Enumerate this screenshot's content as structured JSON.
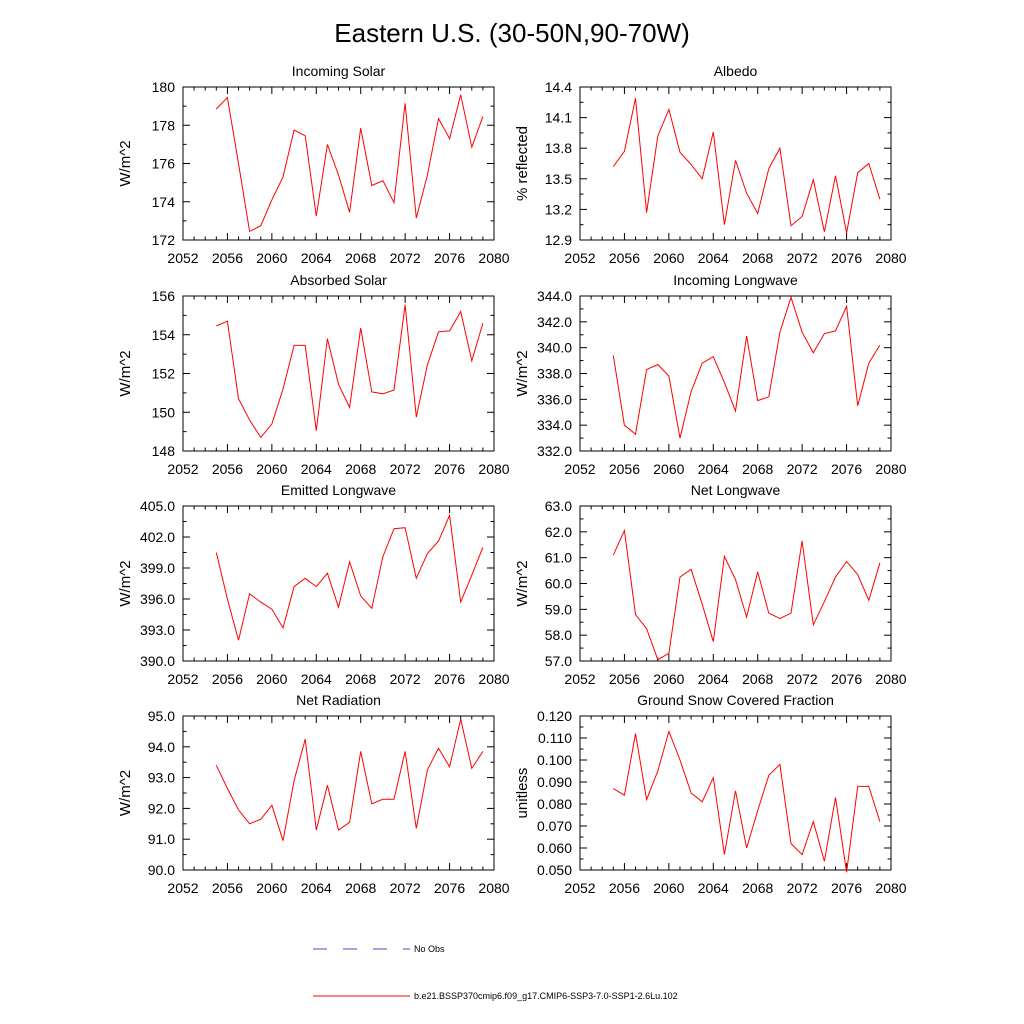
{
  "figure": {
    "title": "Eastern U.S. (30-50N,90-70W)",
    "line_color": "#ff0000",
    "obs_color": "#3b4fc7"
  },
  "legend": [
    {
      "label": "No Obs",
      "style": "dashed",
      "color": "#3b4fc7"
    },
    {
      "label": "b.e21.BSSP370cmip6.f09_g17.CMIP6-SSP3-7.0-SSP1-2.6Lu.102",
      "style": "solid",
      "color": "#ff0000"
    }
  ],
  "chart_data": [
    {
      "type": "line",
      "title": "Incoming Solar",
      "ylabel": "W/m^2",
      "xlim": [
        2052,
        2080
      ],
      "xticks": [
        "2052",
        "2056",
        "2060",
        "2064",
        "2068",
        "2072",
        "2076",
        "2080"
      ],
      "ylim": [
        172,
        180
      ],
      "yticks": [
        "172",
        "174",
        "176",
        "178",
        "180"
      ],
      "x": [
        2055,
        2056,
        2057,
        2058,
        2059,
        2060,
        2061,
        2062,
        2063,
        2064,
        2065,
        2066,
        2067,
        2068,
        2069,
        2070,
        2071,
        2072,
        2073,
        2074,
        2075,
        2076,
        2077,
        2078,
        2079
      ],
      "series": [
        {
          "values": [
            178.85,
            179.45,
            176.0,
            172.45,
            172.75,
            174.1,
            175.3,
            177.75,
            177.45,
            173.25,
            177.0,
            175.4,
            173.45,
            177.85,
            174.85,
            175.1,
            173.95,
            179.15,
            173.15,
            175.4,
            178.35,
            177.3,
            179.6,
            176.85,
            178.45
          ]
        }
      ]
    },
    {
      "type": "line",
      "title": "Albedo",
      "ylabel": "% reflected",
      "xlim": [
        2052,
        2080
      ],
      "xticks": [
        "2052",
        "2056",
        "2060",
        "2064",
        "2068",
        "2072",
        "2076",
        "2080"
      ],
      "ylim": [
        12.9,
        14.4
      ],
      "yticks": [
        "12.9",
        "13.2",
        "13.5",
        "13.8",
        "14.1",
        "14.4"
      ],
      "x": [
        2055,
        2056,
        2057,
        2058,
        2059,
        2060,
        2061,
        2062,
        2063,
        2064,
        2065,
        2066,
        2067,
        2068,
        2069,
        2070,
        2071,
        2072,
        2073,
        2074,
        2075,
        2076,
        2077,
        2078,
        2079
      ],
      "series": [
        {
          "values": [
            13.62,
            13.77,
            14.29,
            13.17,
            13.92,
            14.18,
            13.76,
            13.64,
            13.5,
            13.96,
            13.05,
            13.68,
            13.36,
            13.16,
            13.6,
            13.8,
            13.04,
            13.13,
            13.49,
            12.98,
            13.53,
            12.97,
            13.56,
            13.65,
            13.3
          ]
        }
      ]
    },
    {
      "type": "line",
      "title": "Absorbed Solar",
      "ylabel": "W/m^2",
      "xlim": [
        2052,
        2080
      ],
      "xticks": [
        "2052",
        "2056",
        "2060",
        "2064",
        "2068",
        "2072",
        "2076",
        "2080"
      ],
      "ylim": [
        148,
        156
      ],
      "yticks": [
        "148",
        "150",
        "152",
        "154",
        "156"
      ],
      "x": [
        2055,
        2056,
        2057,
        2058,
        2059,
        2060,
        2061,
        2062,
        2063,
        2064,
        2065,
        2066,
        2067,
        2068,
        2069,
        2070,
        2071,
        2072,
        2073,
        2074,
        2075,
        2076,
        2077,
        2078,
        2079
      ],
      "series": [
        {
          "values": [
            154.45,
            154.7,
            150.7,
            149.6,
            148.7,
            149.4,
            151.2,
            153.45,
            153.45,
            149.05,
            153.8,
            151.45,
            150.25,
            154.35,
            151.05,
            150.95,
            151.15,
            155.55,
            149.75,
            152.45,
            154.15,
            154.2,
            155.2,
            152.65,
            154.6
          ]
        }
      ]
    },
    {
      "type": "line",
      "title": "Incoming Longwave",
      "ylabel": "W/m^2",
      "xlim": [
        2052,
        2080
      ],
      "xticks": [
        "2052",
        "2056",
        "2060",
        "2064",
        "2068",
        "2072",
        "2076",
        "2080"
      ],
      "ylim": [
        332.0,
        344.0
      ],
      "yticks": [
        "332.0",
        "334.0",
        "336.0",
        "338.0",
        "340.0",
        "342.0",
        "344.0"
      ],
      "x": [
        2055,
        2056,
        2057,
        2058,
        2059,
        2060,
        2061,
        2062,
        2063,
        2064,
        2065,
        2066,
        2067,
        2068,
        2069,
        2070,
        2071,
        2072,
        2073,
        2074,
        2075,
        2076,
        2077,
        2078,
        2079
      ],
      "series": [
        {
          "values": [
            339.4,
            334.0,
            333.3,
            338.3,
            338.7,
            337.8,
            333.0,
            336.6,
            338.8,
            339.3,
            337.3,
            335.1,
            340.9,
            335.9,
            336.2,
            341.2,
            343.9,
            341.2,
            339.6,
            341.1,
            341.3,
            343.2,
            335.5,
            338.8,
            340.2
          ]
        }
      ]
    },
    {
      "type": "line",
      "title": "Emitted Longwave",
      "ylabel": "W/m^2",
      "xlim": [
        2052,
        2080
      ],
      "xticks": [
        "2052",
        "2056",
        "2060",
        "2064",
        "2068",
        "2072",
        "2076",
        "2080"
      ],
      "ylim": [
        390.0,
        405.0
      ],
      "yticks": [
        "390.0",
        "393.0",
        "396.0",
        "399.0",
        "402.0",
        "405.0"
      ],
      "x": [
        2055,
        2056,
        2057,
        2058,
        2059,
        2060,
        2061,
        2062,
        2063,
        2064,
        2065,
        2066,
        2067,
        2068,
        2069,
        2070,
        2071,
        2072,
        2073,
        2074,
        2075,
        2076,
        2077,
        2078,
        2079
      ],
      "series": [
        {
          "values": [
            400.5,
            396.0,
            392.0,
            396.5,
            395.7,
            395.0,
            393.2,
            397.2,
            398.0,
            397.2,
            398.5,
            395.2,
            399.6,
            396.3,
            395.1,
            400.1,
            402.8,
            402.9,
            398.0,
            400.4,
            401.6,
            404.1,
            395.7,
            398.3,
            401.0
          ]
        }
      ]
    },
    {
      "type": "line",
      "title": "Net Longwave",
      "ylabel": "W/m^2",
      "xlim": [
        2052,
        2080
      ],
      "xticks": [
        "2052",
        "2056",
        "2060",
        "2064",
        "2068",
        "2072",
        "2076",
        "2080"
      ],
      "ylim": [
        57.0,
        63.0
      ],
      "yticks": [
        "57.0",
        "58.0",
        "59.0",
        "60.0",
        "61.0",
        "62.0",
        "63.0"
      ],
      "x": [
        2055,
        2056,
        2057,
        2058,
        2059,
        2060,
        2061,
        2062,
        2063,
        2064,
        2065,
        2066,
        2067,
        2068,
        2069,
        2070,
        2071,
        2072,
        2073,
        2074,
        2075,
        2076,
        2077,
        2078,
        2079
      ],
      "series": [
        {
          "values": [
            61.1,
            62.05,
            58.8,
            58.25,
            57.05,
            57.3,
            60.25,
            60.55,
            59.2,
            57.75,
            61.05,
            60.15,
            58.7,
            60.45,
            58.85,
            58.65,
            58.85,
            61.65,
            58.4,
            59.3,
            60.25,
            60.85,
            60.35,
            59.35,
            60.8
          ]
        }
      ]
    },
    {
      "type": "line",
      "title": "Net Radiation",
      "ylabel": "W/m^2",
      "xlim": [
        2052,
        2080
      ],
      "xticks": [
        "2052",
        "2056",
        "2060",
        "2064",
        "2068",
        "2072",
        "2076",
        "2080"
      ],
      "ylim": [
        90.0,
        95.0
      ],
      "yticks": [
        "90.0",
        "91.0",
        "92.0",
        "93.0",
        "94.0",
        "95.0"
      ],
      "x": [
        2055,
        2056,
        2057,
        2058,
        2059,
        2060,
        2061,
        2062,
        2063,
        2064,
        2065,
        2066,
        2067,
        2068,
        2069,
        2070,
        2071,
        2072,
        2073,
        2074,
        2075,
        2076,
        2077,
        2078,
        2079
      ],
      "series": [
        {
          "values": [
            93.4,
            92.65,
            91.95,
            91.5,
            91.65,
            92.1,
            90.95,
            92.9,
            94.25,
            91.3,
            92.75,
            91.3,
            91.55,
            93.85,
            92.15,
            92.3,
            92.3,
            93.85,
            91.35,
            93.25,
            93.95,
            93.35,
            94.9,
            93.3,
            93.85
          ]
        }
      ]
    },
    {
      "type": "line",
      "title": "Ground Snow Covered Fraction",
      "ylabel": "unitless",
      "xlim": [
        2052,
        2080
      ],
      "xticks": [
        "2052",
        "2056",
        "2060",
        "2064",
        "2068",
        "2072",
        "2076",
        "2080"
      ],
      "ylim": [
        0.05,
        0.12
      ],
      "yticks": [
        "0.050",
        "0.060",
        "0.070",
        "0.080",
        "0.090",
        "0.100",
        "0.110",
        "0.120"
      ],
      "x": [
        2055,
        2056,
        2057,
        2058,
        2059,
        2060,
        2061,
        2062,
        2063,
        2064,
        2065,
        2066,
        2067,
        2068,
        2069,
        2070,
        2071,
        2072,
        2073,
        2074,
        2075,
        2076,
        2077,
        2078,
        2079
      ],
      "series": [
        {
          "values": [
            0.087,
            0.084,
            0.112,
            0.082,
            0.095,
            0.113,
            0.1,
            0.085,
            0.081,
            0.092,
            0.057,
            0.086,
            0.06,
            0.077,
            0.093,
            0.098,
            0.062,
            0.057,
            0.072,
            0.054,
            0.083,
            0.049,
            0.088,
            0.088,
            0.072
          ]
        }
      ]
    }
  ]
}
